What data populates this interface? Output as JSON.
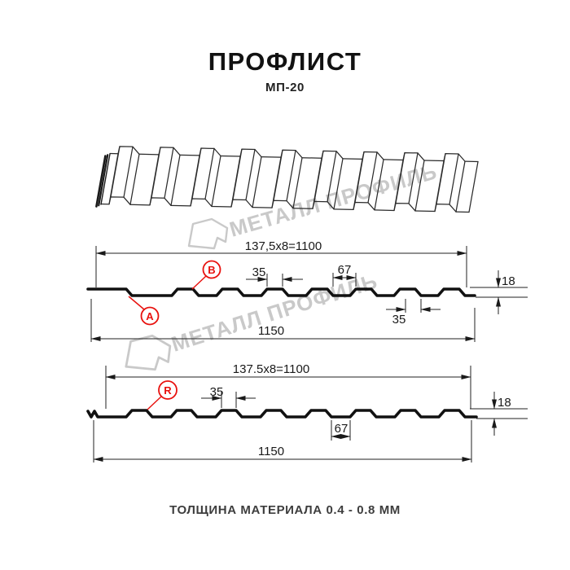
{
  "header": {
    "title": "ПРОФЛИСТ",
    "subtitle": "МП-20"
  },
  "watermark": {
    "text": "МЕТАЛЛ ПРОФИЛЬ"
  },
  "section1": {
    "dim_coverage": "137,5x8=1100",
    "dim_rib_top": "35",
    "dim_flat": "67",
    "dim_height": "18",
    "dim_rib_bottom": "35",
    "dim_total": "1150",
    "label_a": "A",
    "label_b": "B"
  },
  "section2": {
    "dim_coverage": "137.5x8=1100",
    "dim_rib_top": "35",
    "dim_flat": "67",
    "dim_height": "18",
    "dim_total": "1150",
    "label_r": "R"
  },
  "footer": {
    "caption": "ТОЛЩИНА МАТЕРИАЛА 0.4 - 0.8 ММ"
  },
  "colors": {
    "line": "#1a1a1a",
    "accent_red": "#e8120f",
    "watermark_gray": "#c9c9c9"
  }
}
